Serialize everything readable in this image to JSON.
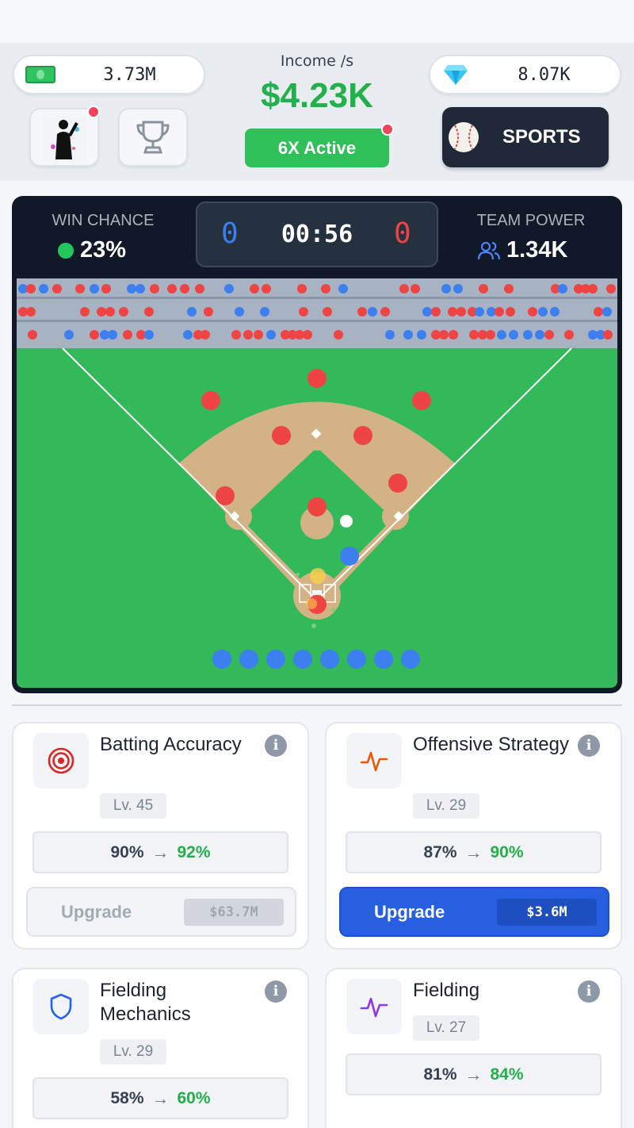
{
  "header": {
    "cash": "3.73M",
    "gems": "8.07K",
    "income_label": "Income /s",
    "income_value": "$4.23K",
    "boost_label": "6X Active",
    "sports_label": "SPORTS",
    "avatar_notification": true,
    "boost_notification": true
  },
  "game": {
    "win_chance_label": "WIN CHANCE",
    "win_chance_value": "23%",
    "team_power_label": "TEAM POWER",
    "team_power_value": "1.34K",
    "score_home": "0",
    "score_away": "0",
    "timer": "00:56",
    "colors": {
      "home": "#3b7ff0",
      "away": "#ef4444",
      "field": "#33b85a",
      "dirt": "#d3b385"
    }
  },
  "upgrades": [
    {
      "title": "Batting Accuracy",
      "level": "Lv. 45",
      "from": "90%",
      "to": "92%",
      "upgrade_label": "Upgrade",
      "price": "$63.7M",
      "affordable": false,
      "icon": "target-icon"
    },
    {
      "title": "Offensive Strategy",
      "level": "Lv. 29",
      "from": "87%",
      "to": "90%",
      "upgrade_label": "Upgrade",
      "price": "$3.6M",
      "affordable": true,
      "icon": "pulse-icon"
    },
    {
      "title": "Fielding Mechanics",
      "level": "Lv. 29",
      "from": "58%",
      "to": "60%",
      "icon": "shield-icon"
    },
    {
      "title": "Fielding",
      "level": "Lv. 27",
      "from": "81%",
      "to": "84%",
      "icon": "pulse-icon"
    }
  ]
}
